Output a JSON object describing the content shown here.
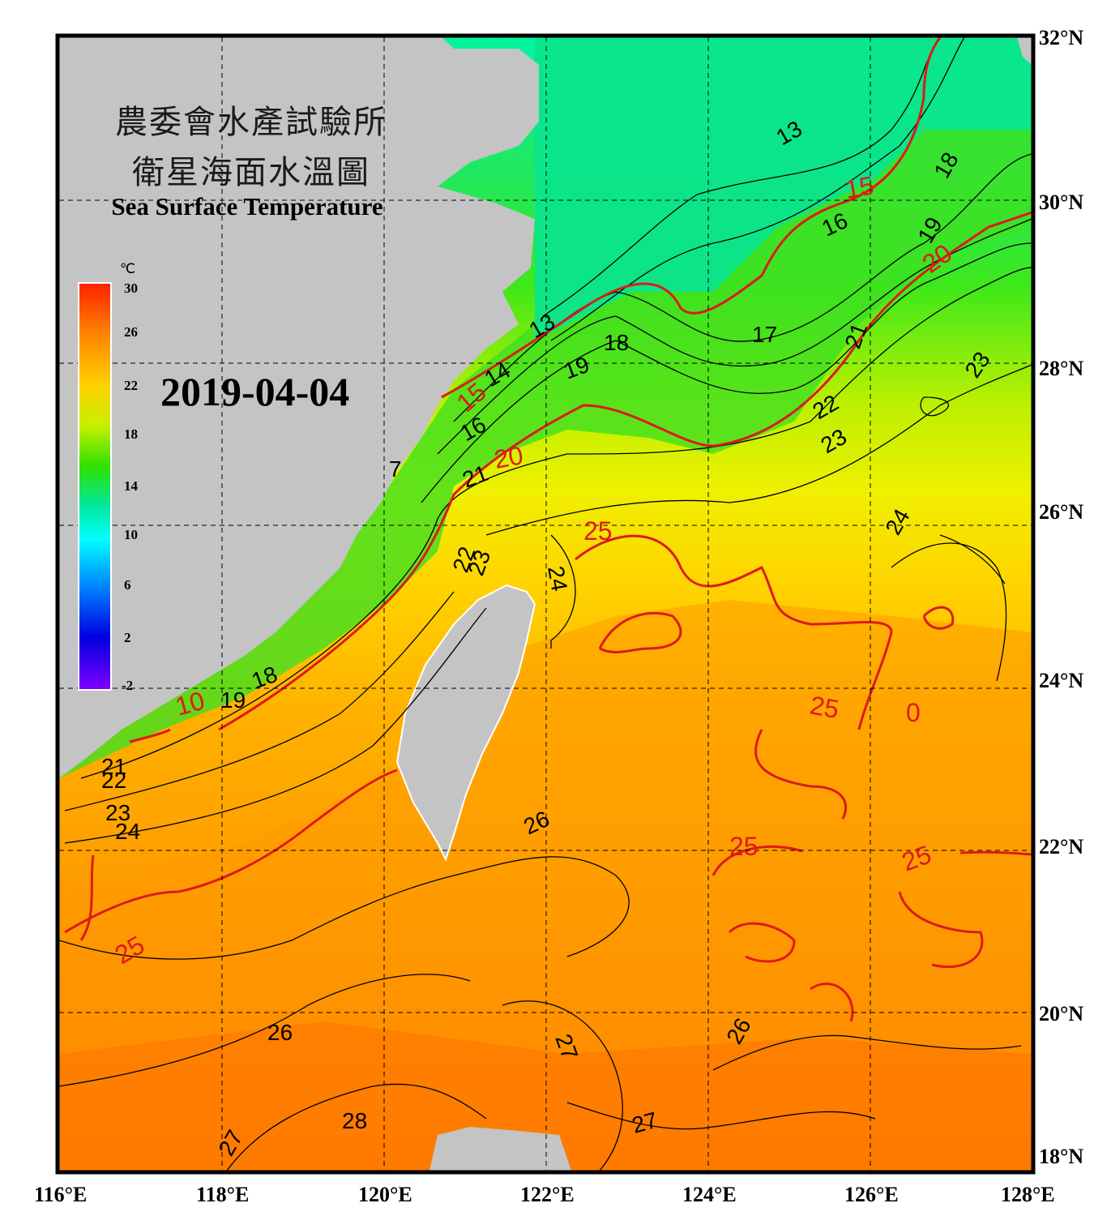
{
  "title_cn_line1": "農委會水產試驗所",
  "title_cn_line2": "衛星海面水溫圖",
  "title_en": "Sea Surface Temperature",
  "date": "2019-04-04",
  "colorbar": {
    "unit": "℃",
    "ticks": [
      "30",
      "26",
      "22",
      "18",
      "14",
      "10",
      "6",
      "2",
      "-2"
    ],
    "min": -2,
    "max": 30
  },
  "axes": {
    "x_labels": [
      "116°E",
      "118°E",
      "120°E",
      "122°E",
      "124°E",
      "126°E",
      "128°E"
    ],
    "y_labels": [
      "32°N",
      "30°N",
      "28°N",
      "26°N",
      "24°N",
      "22°N",
      "20°N",
      "18°N"
    ],
    "lon_range": [
      116,
      128
    ],
    "lat_range": [
      18,
      32
    ]
  },
  "colors": {
    "land": "#c4c4c4",
    "contour_black": "#000000",
    "contour_red": "#dd1a1a"
  },
  "contour_labels": {
    "black": [
      "13",
      "13",
      "14",
      "16",
      "16",
      "17",
      "18",
      "18",
      "18",
      "19",
      "19",
      "19",
      "21",
      "21",
      "21",
      "22",
      "22",
      "22",
      "23",
      "23",
      "23",
      "23",
      "24",
      "24",
      "24",
      "26",
      "26",
      "26",
      "27",
      "27",
      "27",
      "28",
      "7"
    ],
    "red": [
      "15",
      "15",
      "20",
      "20",
      "10",
      "25",
      "25",
      "25",
      "25",
      "25",
      "0"
    ]
  }
}
